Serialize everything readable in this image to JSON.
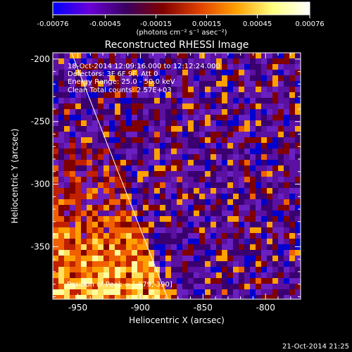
{
  "title": "Reconstructed RHESSI Image",
  "info_lines": [
    "18-Oct-2014 12:09:16.000 to 12:12:24.000",
    "Detectors: 3F 6F 9F, Att 0",
    "Energy Range: 25.0 - 50.0 keV",
    "Clean    Total counts: 2.57E+03"
  ],
  "peak_annotation": "Position of Peak = [-879,-390]",
  "footer_timestamp": "21-Oct-2014 21:25",
  "colorbar": {
    "ticks": [
      "-0.00076",
      "-0.00045",
      "-0.00015",
      "0.00015",
      "0.00045",
      "0.00076"
    ],
    "tick_values": [
      -0.00076,
      -0.00045,
      -0.00015,
      0.00015,
      0.00045,
      0.00076
    ],
    "range": [
      -0.00076,
      0.00076
    ],
    "unit_label": "(photons cm⁻² s⁻¹ asec⁻²)",
    "colors": [
      "#0000ff",
      "#6a00d8",
      "#3a0060",
      "#800000",
      "#e04000",
      "#ffa000",
      "#ffff80",
      "#ffffff"
    ]
  },
  "chart_data": {
    "type": "heatmap",
    "title": "Reconstructed RHESSI Image",
    "xlabel": "Heliocentric X (arcsec)",
    "ylabel": "Heliocentric Y (arcsec)",
    "xlim": [
      -970,
      -772
    ],
    "ylim": [
      -392,
      -195
    ],
    "x_ticks": [
      -950,
      -900,
      -850,
      -800
    ],
    "y_ticks": [
      -350,
      -300,
      -250,
      -200
    ],
    "peak": {
      "x": -879,
      "y": -390
    },
    "limb_line": [
      [
        -955,
        -195
      ],
      [
        -878,
        -392
      ]
    ],
    "value_range": [
      -0.00076,
      0.00076
    ],
    "grid": false
  }
}
